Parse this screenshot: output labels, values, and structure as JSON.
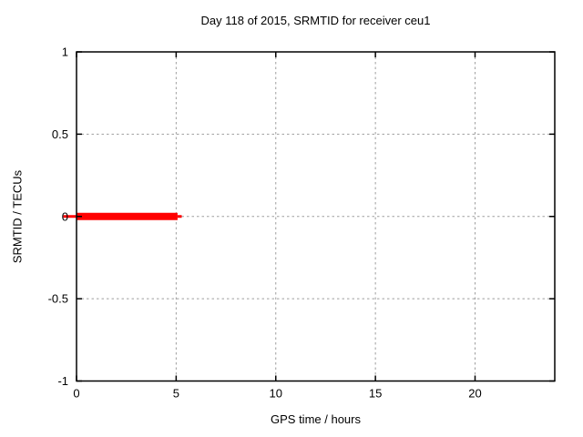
{
  "chart_data": {
    "type": "line",
    "title": "Day 118 of 2015, SRMTID for receiver ceu1",
    "xlabel": "GPS time / hours",
    "ylabel": "SRMTID / TECUs",
    "xlim": [
      0,
      24
    ],
    "ylim": [
      -1,
      1
    ],
    "xticks": [
      0,
      5,
      10,
      15,
      20
    ],
    "yticks": [
      1,
      0.5,
      0,
      -0.5,
      -1
    ],
    "grid": true,
    "legend_position": "none",
    "series": [
      {
        "name": "SRMTID",
        "color": "#ff0000",
        "y_value": 0,
        "segments": [
          {
            "x_start": -0.66,
            "x_end": -0.02,
            "style": "thin"
          },
          {
            "x_start": 0,
            "x_end": 5.07,
            "style": "thick"
          },
          {
            "x_start": 5.07,
            "x_end": 5.28,
            "style": "thin"
          }
        ]
      }
    ]
  },
  "colors": {
    "background": "#ffffff",
    "border": "#000000",
    "grid": "#9e9e9e",
    "text": "#000000",
    "series": "#ff0000"
  }
}
